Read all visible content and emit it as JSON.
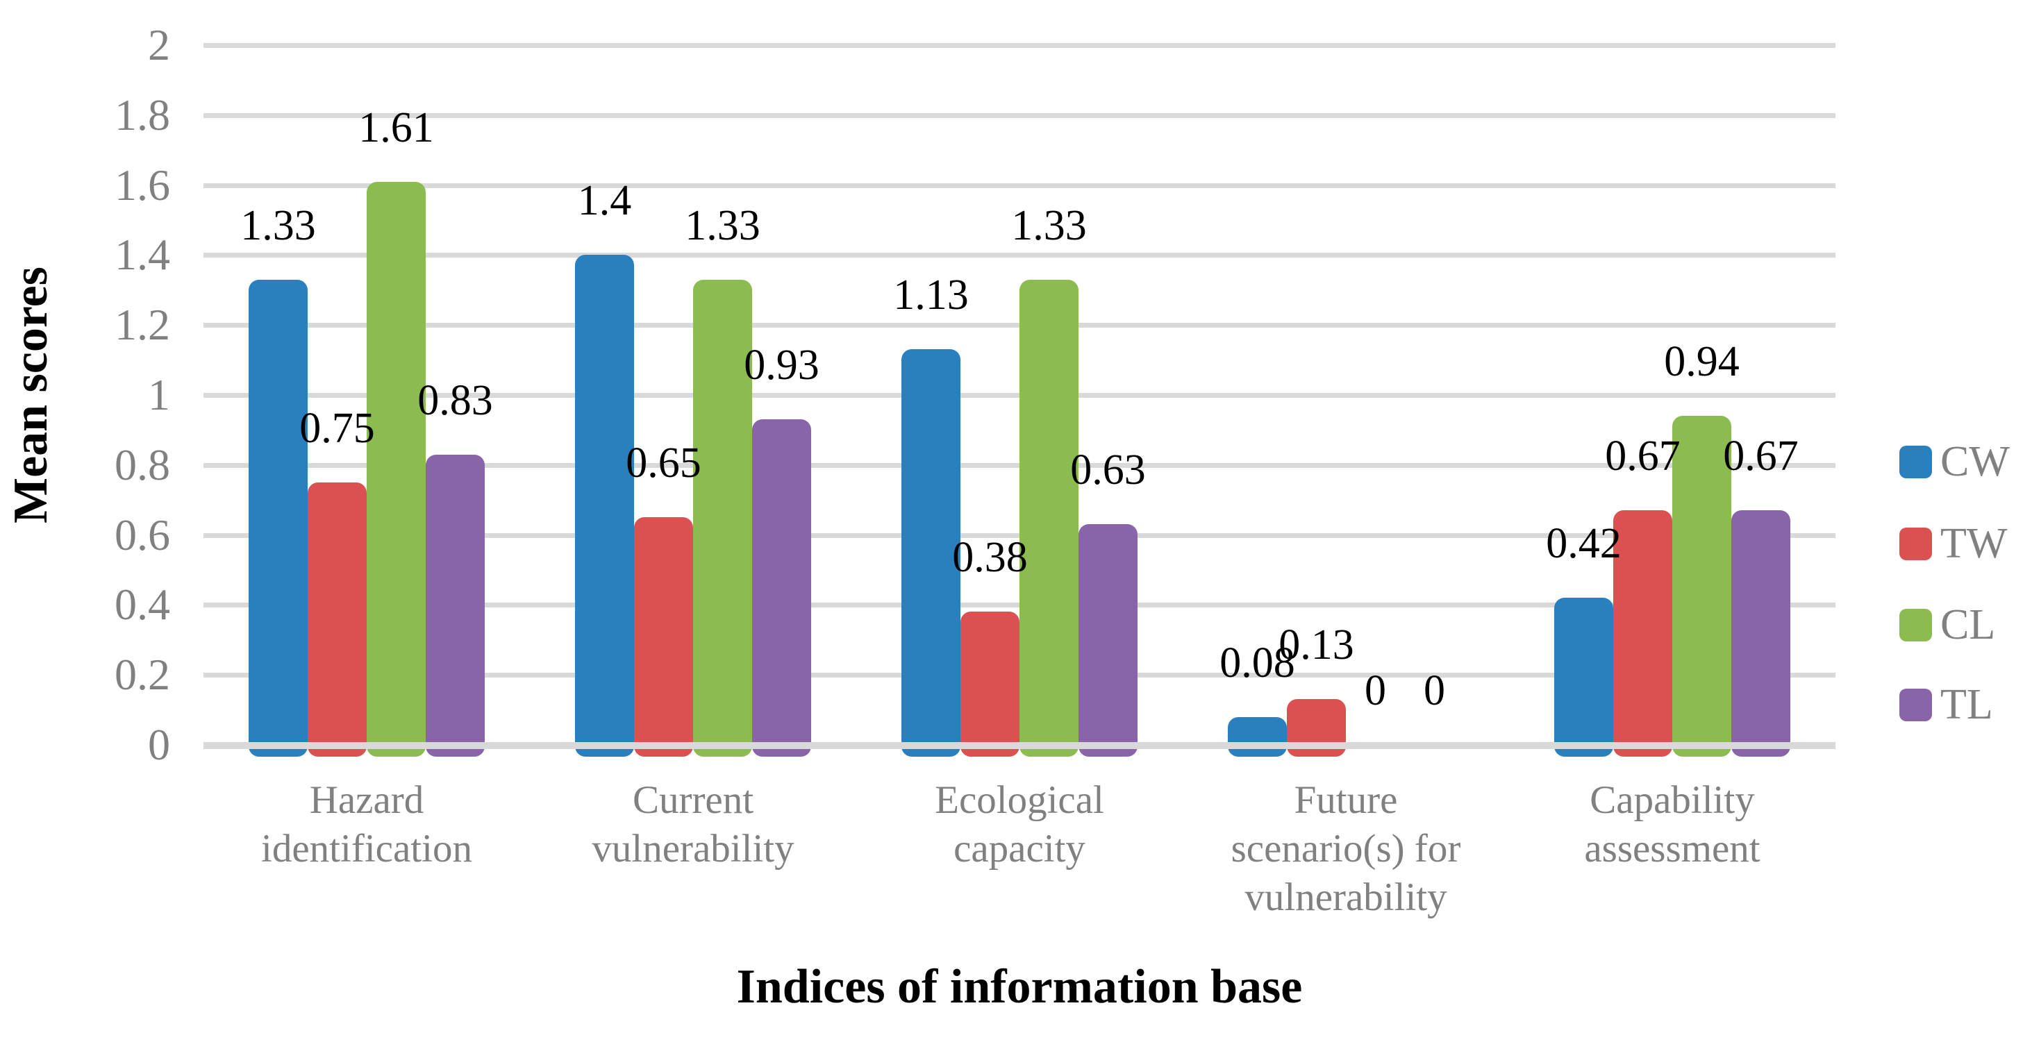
{
  "chart_data": {
    "type": "bar",
    "title": "",
    "xlabel": "Indices of information base",
    "ylabel": "Mean scores",
    "ylim": [
      0,
      2
    ],
    "ytick_step": 0.2,
    "yticks": [
      {
        "value": 0,
        "label": "0"
      },
      {
        "value": 0.2,
        "label": "0.2"
      },
      {
        "value": 0.4,
        "label": "0.4"
      },
      {
        "value": 0.6,
        "label": "0.6"
      },
      {
        "value": 0.8,
        "label": "0.8"
      },
      {
        "value": 1,
        "label": "1"
      },
      {
        "value": 1.2,
        "label": "1.2"
      },
      {
        "value": 1.4,
        "label": "1.4"
      },
      {
        "value": 1.6,
        "label": "1.6"
      },
      {
        "value": 1.8,
        "label": "1.8"
      },
      {
        "value": 2,
        "label": "2"
      }
    ],
    "categories": [
      {
        "lines": [
          "Hazard",
          "identification"
        ]
      },
      {
        "lines": [
          "Current",
          "vulnerability"
        ]
      },
      {
        "lines": [
          "Ecological",
          "capacity"
        ]
      },
      {
        "lines": [
          "Future",
          "scenario(s) for",
          "vulnerability"
        ]
      },
      {
        "lines": [
          "Capability",
          "assessment"
        ]
      }
    ],
    "series": [
      {
        "name": "CW",
        "color": "#2A80BE",
        "values": [
          1.33,
          1.4,
          1.13,
          0.08,
          0.42
        ],
        "labels": [
          "1.33",
          "1.4",
          "1.13",
          "0.08",
          "0.42"
        ]
      },
      {
        "name": "TW",
        "color": "#DB5050",
        "values": [
          0.75,
          0.65,
          0.38,
          0.13,
          0.67
        ],
        "labels": [
          "0.75",
          "0.65",
          "0.38",
          "0.13",
          "0.67"
        ]
      },
      {
        "name": "CL",
        "color": "#8CBC50",
        "values": [
          1.61,
          1.33,
          1.33,
          0,
          0.94
        ],
        "labels": [
          "1.61",
          "1.33",
          "1.33",
          "0",
          "0.94"
        ]
      },
      {
        "name": "TL",
        "color": "#8964A8",
        "values": [
          0.83,
          0.93,
          0.63,
          0,
          0.67
        ],
        "labels": [
          "0.83",
          "0.93",
          "0.63",
          "0",
          "0.67"
        ]
      }
    ],
    "legend_position": "right",
    "gridlines": true,
    "colors": {
      "gridline": "#D9D9D9",
      "axis_line": "#D9D9D9",
      "tick_text": "#808080",
      "category_text": "#808080",
      "legend_text": "#808080",
      "data_label_text": "#000000",
      "background": "#FFFFFF"
    }
  }
}
